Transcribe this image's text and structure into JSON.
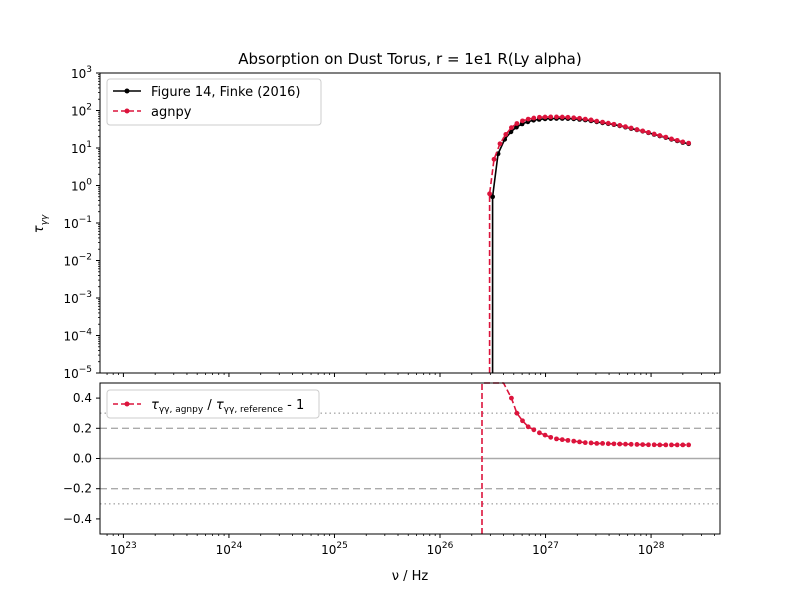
{
  "figure": {
    "title": "Absorption on Dust Torus, r = 1e1 R(Ly alpha)",
    "xlabel": "ν / Hz"
  },
  "chart_data": [
    {
      "type": "line",
      "panel": "top",
      "title": "Absorption on Dust Torus, r = 1e1 R(Ly alpha)",
      "ylabel": "τγγ",
      "xscale": "log",
      "yscale": "log",
      "xlim": [
        6e+22,
        4.5e+28
      ],
      "ylim": [
        1e-05,
        1000.0
      ],
      "x_ticks": [
        "10^23",
        "10^24",
        "10^25",
        "10^26",
        "10^27",
        "10^28"
      ],
      "y_ticks": [
        "10^-5",
        "10^-4",
        "10^-3",
        "10^-2",
        "10^-1",
        "10^0",
        "10^1",
        "10^2",
        "10^3"
      ],
      "legend": "top-left",
      "series": [
        {
          "name": "Figure 14, Finke (2016)",
          "color": "#000000",
          "style": "solid",
          "marker": "dot",
          "x": [
            3.15e+26,
            3.15e+26,
            3.55e+26,
            4.1e+26,
            4.7e+26,
            5.3e+26,
            6e+26,
            6.8e+26,
            7.7e+26,
            8.7e+26,
            9.9e+26,
            1.12e+27,
            1.27e+27,
            1.44e+27,
            1.63e+27,
            1.85e+27,
            2.1e+27,
            2.38e+27,
            2.7e+27,
            3.06e+27,
            3.47e+27,
            3.93e+27,
            4.45e+27,
            5.05e+27,
            5.72e+27,
            6.48e+27,
            7.35e+27,
            8.33e+27,
            9.45e+27,
            1.07e+28,
            1.21e+28,
            1.38e+28,
            1.56e+28,
            1.77e+28,
            2e+28,
            2.27e+28
          ],
          "y": [
            1e-05,
            0.5,
            7,
            17,
            27,
            36,
            44,
            50,
            55,
            58,
            60,
            61,
            61.5,
            61.5,
            61,
            60,
            58,
            56,
            53,
            50,
            47,
            44.5,
            42,
            39,
            36,
            33,
            30.5,
            28,
            25.5,
            23,
            21,
            19,
            17,
            15.5,
            14,
            13
          ]
        },
        {
          "name": "agnpy",
          "color": "#dc143c",
          "style": "dashed",
          "marker": "dot",
          "x": [
            2.95e+26,
            2.95e+26,
            3.25e+26,
            3.7e+26,
            4.2e+26,
            4.75e+26,
            5.35e+26,
            6.05e+26,
            6.85e+26,
            7.75e+26,
            8.75e+26,
            9.9e+26,
            1.12e+27,
            1.27e+27,
            1.44e+27,
            1.63e+27,
            1.85e+27,
            2.1e+27,
            2.38e+27,
            2.7e+27,
            3.06e+27,
            3.47e+27,
            3.93e+27,
            4.45e+27,
            5.05e+27,
            5.72e+27,
            6.48e+27,
            7.35e+27,
            8.33e+27,
            9.45e+27,
            1.07e+28,
            1.21e+28,
            1.38e+28,
            1.56e+28,
            1.77e+28,
            2e+28,
            2.27e+28
          ],
          "y": [
            1e-05,
            0.6,
            5,
            13,
            23,
            35,
            45,
            53,
            59,
            63,
            66,
            67,
            67.5,
            67.5,
            67,
            66,
            64,
            62,
            59,
            56,
            52,
            49,
            46,
            43,
            40,
            37,
            34,
            31,
            28.5,
            26,
            23.5,
            21.5,
            19.5,
            17.5,
            16,
            14.5,
            13.5
          ]
        }
      ]
    },
    {
      "type": "line",
      "panel": "bottom",
      "xlabel": "ν / Hz",
      "xscale": "log",
      "xlim": [
        6e+22,
        4.5e+28
      ],
      "ylim": [
        -0.5,
        0.5
      ],
      "yticks": [
        "0.4",
        "0.2",
        "0.0",
        "−0.2",
        "−0.4"
      ],
      "legend": "top-left",
      "reference_lines": [
        {
          "y": 0.0,
          "style": "solid",
          "color": "#aaaaaa"
        },
        {
          "y": 0.2,
          "style": "dashed",
          "color": "#aaaaaa"
        },
        {
          "y": -0.2,
          "style": "dashed",
          "color": "#aaaaaa"
        },
        {
          "y": 0.3,
          "style": "dotted",
          "color": "#aaaaaa"
        },
        {
          "y": -0.3,
          "style": "dotted",
          "color": "#aaaaaa"
        }
      ],
      "series": [
        {
          "name": "τγγ, agnpy / τγγ, reference - 1",
          "color": "#dc143c",
          "style": "dashed",
          "marker": "dot",
          "x": [
            2.5e+26,
            2.5e+26,
            4e+26,
            4.75e+26,
            5.35e+26,
            6.05e+26,
            6.85e+26,
            7.75e+26,
            8.75e+26,
            9.9e+26,
            1.12e+27,
            1.27e+27,
            1.44e+27,
            1.63e+27,
            1.85e+27,
            2.1e+27,
            2.38e+27,
            2.7e+27,
            3.06e+27,
            3.47e+27,
            3.93e+27,
            4.45e+27,
            5.05e+27,
            5.72e+27,
            6.48e+27,
            7.35e+27,
            8.33e+27,
            9.45e+27,
            1.07e+28,
            1.21e+28,
            1.38e+28,
            1.56e+28,
            1.77e+28,
            2e+28,
            2.27e+28
          ],
          "y": [
            -0.5,
            0.5,
            0.5,
            0.4,
            0.3,
            0.25,
            0.21,
            0.19,
            0.17,
            0.155,
            0.14,
            0.13,
            0.125,
            0.12,
            0.115,
            0.11,
            0.105,
            0.103,
            0.1,
            0.1,
            0.098,
            0.097,
            0.096,
            0.095,
            0.094,
            0.093,
            0.092,
            0.091,
            0.091,
            0.09,
            0.09,
            0.09,
            0.09,
            0.09,
            0.09
          ]
        }
      ]
    }
  ]
}
